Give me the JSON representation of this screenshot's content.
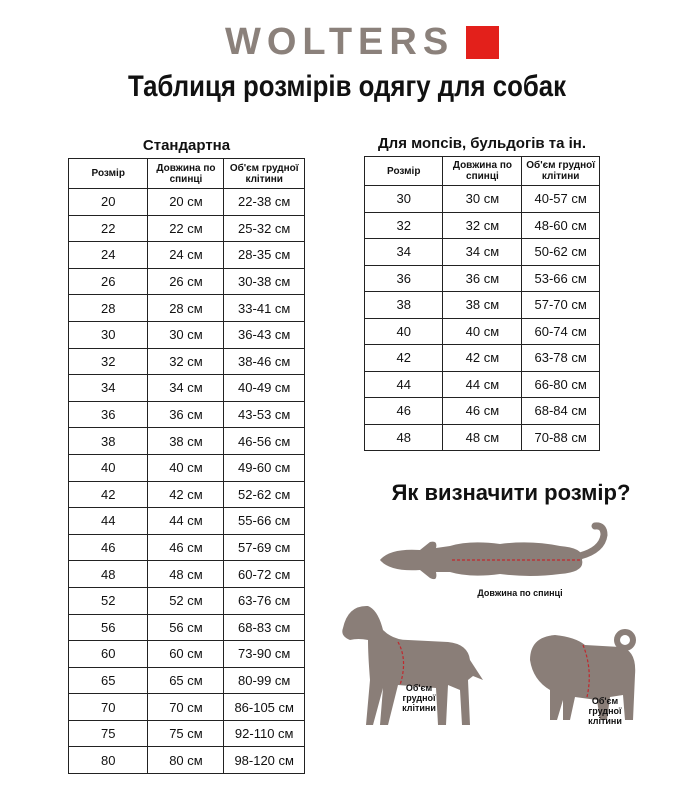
{
  "brand": {
    "name": "WOLTERS",
    "accent": "#e3201b"
  },
  "title": "Таблиця розмірів одягу для собак",
  "standard": {
    "caption": "Стандартна",
    "headers": [
      "Розмір",
      "Довжина по спинці",
      "Об'єм грудної клітини"
    ],
    "rows": [
      [
        "20",
        "20 см",
        "22-38 см"
      ],
      [
        "22",
        "22 см",
        "25-32 см"
      ],
      [
        "24",
        "24 см",
        "28-35 см"
      ],
      [
        "26",
        "26 см",
        "30-38 см"
      ],
      [
        "28",
        "28 см",
        "33-41 см"
      ],
      [
        "30",
        "30 см",
        "36-43 см"
      ],
      [
        "32",
        "32 см",
        "38-46 см"
      ],
      [
        "34",
        "34 см",
        "40-49 см"
      ],
      [
        "36",
        "36 см",
        "43-53 см"
      ],
      [
        "38",
        "38 см",
        "46-56 см"
      ],
      [
        "40",
        "40 см",
        "49-60 см"
      ],
      [
        "42",
        "42 см",
        "52-62 см"
      ],
      [
        "44",
        "44 см",
        "55-66 см"
      ],
      [
        "46",
        "46 см",
        "57-69 см"
      ],
      [
        "48",
        "48 см",
        "60-72 см"
      ],
      [
        "52",
        "52 см",
        "63-76 см"
      ],
      [
        "56",
        "56 см",
        "68-83 см"
      ],
      [
        "60",
        "60 см",
        "73-90 см"
      ],
      [
        "65",
        "65 см",
        "80-99 см"
      ],
      [
        "70",
        "70 см",
        "86-105 см"
      ],
      [
        "75",
        "75 см",
        "92-110 см"
      ],
      [
        "80",
        "80 см",
        "98-120 см"
      ]
    ]
  },
  "pugs": {
    "caption": "Для мопсів, бульдогів та ін.",
    "headers": [
      "Розмір",
      "Довжина по спинці",
      "Об'єм грудної клітини"
    ],
    "rows": [
      [
        "30",
        "30 см",
        "40-57 см"
      ],
      [
        "32",
        "32 см",
        "48-60 см"
      ],
      [
        "34",
        "34 см",
        "50-62 см"
      ],
      [
        "36",
        "36 см",
        "53-66 см"
      ],
      [
        "38",
        "38 см",
        "57-70 см"
      ],
      [
        "40",
        "40 см",
        "60-74 см"
      ],
      [
        "42",
        "42 см",
        "63-78 см"
      ],
      [
        "44",
        "44 см",
        "66-80 см"
      ],
      [
        "46",
        "46 см",
        "68-84 см"
      ],
      [
        "48",
        "48 см",
        "70-88 см"
      ]
    ]
  },
  "howto": {
    "heading": "Як визначити розмір?",
    "back_label": "Довжина по спинці",
    "chest_label": "Об'єм грудної клітини"
  }
}
